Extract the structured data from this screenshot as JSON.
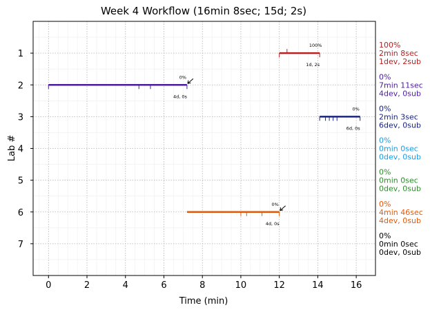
{
  "chart_data": {
    "type": "gantt",
    "title": "Week 4 Workflow (16min 8sec; 15d; 2s)",
    "xlabel": "Time (min)",
    "ylabel": "Lab #",
    "xlim": [
      -0.8,
      17.0
    ],
    "ylim": [
      0,
      8
    ],
    "x_ticks": [
      0,
      2,
      4,
      6,
      8,
      10,
      12,
      14,
      16
    ],
    "y_ticks": [
      1,
      2,
      3,
      4,
      5,
      6,
      7
    ],
    "grid": true,
    "labs": [
      {
        "lab": 1,
        "color": "#b22222",
        "start": 12.0,
        "end": 14.1,
        "marks": [
          12.0,
          14.1
        ],
        "sub_marks": [
          12.4
        ],
        "percent": "100%",
        "counts": "1d, 2s",
        "arrow": false,
        "side": [
          "100%",
          "2min 8sec",
          "1dev, 2sub"
        ]
      },
      {
        "lab": 2,
        "color": "#4b1c9c",
        "start": 0.0,
        "end": 7.2,
        "marks": [
          0.0,
          4.7,
          5.3,
          7.2
        ],
        "sub_marks": [],
        "percent": "0%",
        "counts": "4d, 0s",
        "arrow": true,
        "side": [
          "0%",
          "7min 11sec",
          "4dev, 0sub"
        ]
      },
      {
        "lab": 3,
        "color": "#1a237e",
        "start": 14.1,
        "end": 16.2,
        "marks": [
          14.1,
          14.4,
          14.6,
          14.8,
          15.0,
          16.2
        ],
        "sub_marks": [],
        "percent": "0%",
        "counts": "6d, 0s",
        "arrow": false,
        "side": [
          "0%",
          "2min 3sec",
          "6dev, 0sub"
        ]
      },
      {
        "lab": 4,
        "color": "#1e9be0",
        "start": null,
        "end": null,
        "marks": [],
        "sub_marks": [],
        "percent": "",
        "counts": "",
        "arrow": false,
        "side": [
          "0%",
          "0min 0sec",
          "0dev, 0sub"
        ]
      },
      {
        "lab": 5,
        "color": "#2e8b2e",
        "start": null,
        "end": null,
        "marks": [],
        "sub_marks": [],
        "percent": "",
        "counts": "",
        "arrow": false,
        "side": [
          "0%",
          "0min 0sec",
          "0dev, 0sub"
        ]
      },
      {
        "lab": 6,
        "color": "#e05a0c",
        "start": 7.2,
        "end": 12.0,
        "marks": [
          10.0,
          10.3,
          11.1,
          12.0
        ],
        "sub_marks": [],
        "percent": "0%",
        "counts": "4d, 0s",
        "arrow": true,
        "side": [
          "0%",
          "4min 46sec",
          "4dev, 0sub"
        ]
      },
      {
        "lab": 7,
        "color": "#000000",
        "start": null,
        "end": null,
        "marks": [],
        "sub_marks": [],
        "percent": "",
        "counts": "",
        "arrow": false,
        "side": [
          "0%",
          "0min 0sec",
          "0dev, 0sub"
        ]
      }
    ]
  }
}
